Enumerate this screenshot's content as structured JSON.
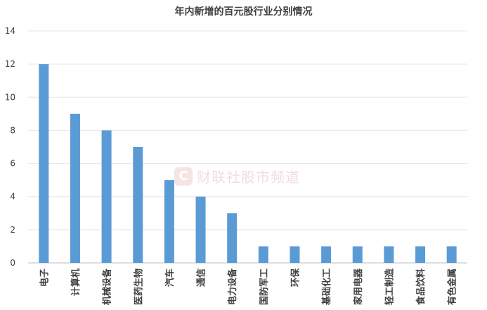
{
  "chart_data": {
    "type": "bar",
    "title": "年内新增的百元股行业分别情况",
    "categories": [
      "电子",
      "计算机",
      "机械设备",
      "医药生物",
      "汽车",
      "通信",
      "电力设备",
      "国防军工",
      "环保",
      "基础化工",
      "家用电器",
      "轻工制造",
      "食品饮料",
      "有色金属"
    ],
    "values": [
      12,
      9,
      8,
      7,
      5,
      4,
      3,
      1,
      1,
      1,
      1,
      1,
      1,
      1
    ],
    "ylim": [
      0,
      14
    ],
    "yticks": [
      0,
      2,
      4,
      6,
      8,
      10,
      12,
      14
    ],
    "grid": true,
    "bar_color": "#5b9bd5"
  },
  "watermark": {
    "logo": "C",
    "text": "财联社股市频道"
  }
}
